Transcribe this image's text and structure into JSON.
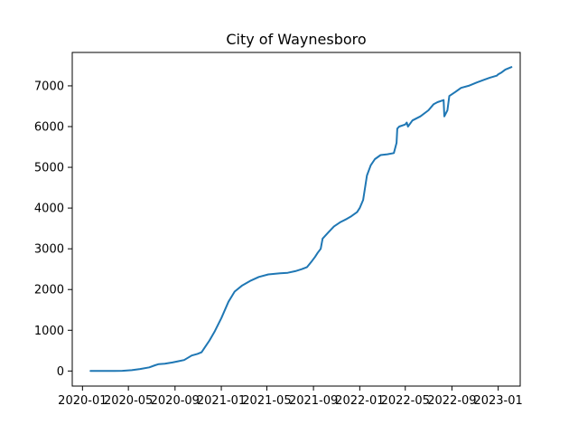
{
  "chart_data": {
    "type": "line",
    "title": "City of Waynesboro",
    "xlabel": "",
    "ylabel": "",
    "grid": false,
    "legend": "none",
    "x_axis_type": "date",
    "xlim": [
      "2019-12-05",
      "2023-02-28"
    ],
    "ylim": [
      -370,
      7820
    ],
    "x_ticks": [
      "2020-01",
      "2020-05",
      "2020-09",
      "2021-01",
      "2021-05",
      "2021-09",
      "2022-01",
      "2022-05",
      "2022-09",
      "2023-01"
    ],
    "y_ticks": [
      0,
      1000,
      2000,
      3000,
      4000,
      5000,
      6000,
      7000
    ],
    "series": [
      {
        "color": "#1f77b4",
        "x": [
          "2020-01-22",
          "2020-03-15",
          "2020-04-15",
          "2020-05-10",
          "2020-06-01",
          "2020-06-25",
          "2020-07-10",
          "2020-07-20",
          "2020-08-05",
          "2020-08-25",
          "2020-09-10",
          "2020-09-25",
          "2020-10-15",
          "2020-10-30",
          "2020-11-10",
          "2020-11-20",
          "2020-12-01",
          "2020-12-15",
          "2021-01-01",
          "2021-01-20",
          "2021-02-05",
          "2021-02-25",
          "2021-03-20",
          "2021-04-10",
          "2021-05-05",
          "2021-06-05",
          "2021-06-25",
          "2021-07-15",
          "2021-08-01",
          "2021-08-15",
          "2021-08-28",
          "2021-09-05",
          "2021-09-12",
          "2021-09-20",
          "2021-09-25",
          "2021-10-10",
          "2021-10-25",
          "2021-11-10",
          "2021-11-25",
          "2021-12-10",
          "2021-12-25",
          "2022-01-01",
          "2022-01-10",
          "2022-01-20",
          "2022-01-30",
          "2022-02-10",
          "2022-02-25",
          "2022-03-15",
          "2022-04-01",
          "2022-04-08",
          "2022-04-10",
          "2022-04-15",
          "2022-05-01",
          "2022-05-05",
          "2022-05-08",
          "2022-05-20",
          "2022-06-10",
          "2022-07-01",
          "2022-07-15",
          "2022-07-25",
          "2022-08-10",
          "2022-08-12",
          "2022-08-20",
          "2022-08-25",
          "2022-09-10",
          "2022-09-25",
          "2022-10-15",
          "2022-11-05",
          "2022-11-25",
          "2022-12-10",
          "2022-12-28",
          "2023-01-01",
          "2023-01-10",
          "2023-01-20",
          "2023-02-05"
        ],
        "y": [
          0,
          0,
          5,
          20,
          50,
          90,
          140,
          170,
          180,
          210,
          240,
          270,
          380,
          420,
          460,
          600,
          750,
          980,
          1300,
          1700,
          1950,
          2100,
          2220,
          2310,
          2370,
          2400,
          2410,
          2450,
          2500,
          2550,
          2700,
          2800,
          2900,
          3000,
          3250,
          3400,
          3550,
          3650,
          3720,
          3800,
          3900,
          4000,
          4200,
          4800,
          5050,
          5200,
          5300,
          5320,
          5350,
          5600,
          5950,
          6000,
          6050,
          6100,
          6000,
          6150,
          6250,
          6400,
          6550,
          6600,
          6650,
          6250,
          6400,
          6750,
          6850,
          6950,
          7000,
          7080,
          7150,
          7200,
          7250,
          7280,
          7330,
          7400,
          7460
        ]
      }
    ]
  }
}
